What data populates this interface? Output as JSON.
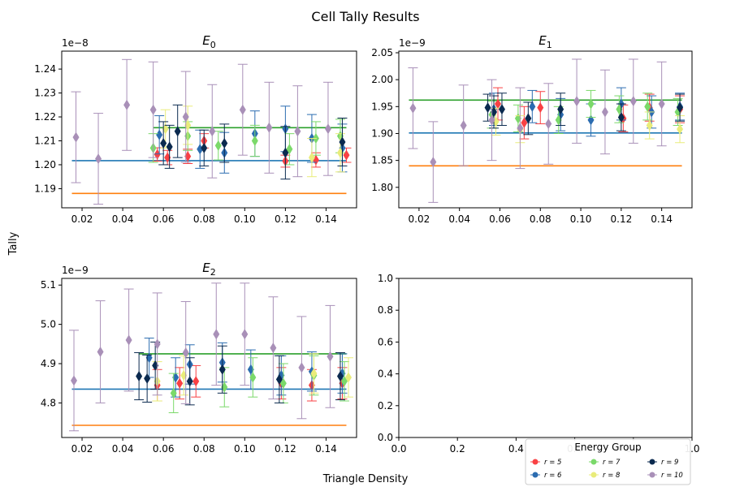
{
  "figure": {
    "title": "Cell Tally Results",
    "xlabel": "Triangle Density",
    "ylabel": "Tally"
  },
  "legend": {
    "title": "Energy Group",
    "placement": "lower-right",
    "entries": [
      {
        "label": "r = 5",
        "color": "#f94144",
        "marker": "circle"
      },
      {
        "label": "r = 6",
        "color": "#2b6cb0",
        "marker": "circle"
      },
      {
        "label": "r = 7",
        "color": "#7bd96a",
        "marker": "circle"
      },
      {
        "label": "r = 8",
        "color": "#e9ec7a",
        "marker": "circle"
      },
      {
        "label": "r = 9",
        "color": "#0b2a4f",
        "marker": "circle"
      },
      {
        "label": "r = 10",
        "color": "#a990b8",
        "marker": "circle"
      }
    ]
  },
  "reference_colors": {
    "blue": "#1f77b4",
    "orange": "#ff7f0e",
    "green": "#2ca02c"
  },
  "chart_data": [
    {
      "type": "scatter",
      "title": "E_0",
      "title_main": "E",
      "title_sub": "0",
      "exponent_label": "1e−8",
      "xlim": [
        0.01,
        0.155
      ],
      "ylim": [
        1.182,
        1.2475
      ],
      "xticks": [
        0.02,
        0.04,
        0.06,
        0.08,
        0.1,
        0.12,
        0.14
      ],
      "xtick_labels": [
        "0.02",
        "0.04",
        "0.06",
        "0.08",
        "0.10",
        "0.12",
        "0.14"
      ],
      "yticks": [
        1.19,
        1.2,
        1.21,
        1.22,
        1.23,
        1.24
      ],
      "ytick_labels": [
        "1.19",
        "1.20",
        "1.21",
        "1.22",
        "1.23",
        "1.24"
      ],
      "hlines": [
        {
          "color": "#ff7f0e",
          "y": 1.188,
          "x": [
            0.015,
            0.15
          ]
        },
        {
          "color": "#1f77b4",
          "y": 1.2017,
          "x": [
            0.015,
            0.15
          ]
        },
        {
          "color": "#2ca02c",
          "y": 1.2155,
          "x": [
            0.055,
            0.15
          ]
        }
      ],
      "series": [
        {
          "color": "#f94144",
          "points": [
            {
              "x": 0.057,
              "y": 1.2043,
              "err": 0.0028
            },
            {
              "x": 0.062,
              "y": 1.203,
              "err": 0.003
            },
            {
              "x": 0.072,
              "y": 1.2035,
              "err": 0.003
            },
            {
              "x": 0.08,
              "y": 1.21,
              "err": 0.003
            },
            {
              "x": 0.12,
              "y": 1.2015,
              "err": 0.0025
            },
            {
              "x": 0.135,
              "y": 1.202,
              "err": 0.003
            },
            {
              "x": 0.15,
              "y": 1.204,
              "err": 0.003
            }
          ]
        },
        {
          "color": "#2b6cb0",
          "points": [
            {
              "x": 0.058,
              "y": 1.2125,
              "err": 0.008
            },
            {
              "x": 0.078,
              "y": 1.2065,
              "err": 0.008
            },
            {
              "x": 0.09,
              "y": 1.205,
              "err": 0.0085
            },
            {
              "x": 0.105,
              "y": 1.213,
              "err": 0.0095
            },
            {
              "x": 0.12,
              "y": 1.215,
              "err": 0.0095
            },
            {
              "x": 0.133,
              "y": 1.211,
              "err": 0.01
            },
            {
              "x": 0.148,
              "y": 1.207,
              "err": 0.01
            }
          ]
        },
        {
          "color": "#7bd96a",
          "points": [
            {
              "x": 0.055,
              "y": 1.207,
              "err": 0.006
            },
            {
              "x": 0.072,
              "y": 1.212,
              "err": 0.006
            },
            {
              "x": 0.087,
              "y": 1.208,
              "err": 0.006
            },
            {
              "x": 0.105,
              "y": 1.21,
              "err": 0.0065
            },
            {
              "x": 0.122,
              "y": 1.2065,
              "err": 0.0065
            },
            {
              "x": 0.135,
              "y": 1.211,
              "err": 0.007
            },
            {
              "x": 0.147,
              "y": 1.212,
              "err": 0.007
            }
          ]
        },
        {
          "color": "#e9ec7a",
          "points": [
            {
              "x": 0.061,
              "y": 1.215,
              "err": 0.008
            },
            {
              "x": 0.072,
              "y": 1.2165,
              "err": 0.008
            },
            {
              "x": 0.133,
              "y": 1.203,
              "err": 0.008
            },
            {
              "x": 0.147,
              "y": 1.205,
              "err": 0.008
            }
          ]
        },
        {
          "color": "#0b2a4f",
          "points": [
            {
              "x": 0.06,
              "y": 1.209,
              "err": 0.009
            },
            {
              "x": 0.063,
              "y": 1.2075,
              "err": 0.009
            },
            {
              "x": 0.067,
              "y": 1.214,
              "err": 0.011
            },
            {
              "x": 0.08,
              "y": 1.207,
              "err": 0.0075
            },
            {
              "x": 0.09,
              "y": 1.209,
              "err": 0.008
            },
            {
              "x": 0.12,
              "y": 1.205,
              "err": 0.011
            },
            {
              "x": 0.148,
              "y": 1.2095,
              "err": 0.01
            }
          ]
        },
        {
          "color": "#a990b8",
          "points": [
            {
              "x": 0.017,
              "y": 1.2115,
              "err": 0.019
            },
            {
              "x": 0.028,
              "y": 1.2025,
              "err": 0.019
            },
            {
              "x": 0.042,
              "y": 1.225,
              "err": 0.019
            },
            {
              "x": 0.055,
              "y": 1.223,
              "err": 0.02
            },
            {
              "x": 0.071,
              "y": 1.22,
              "err": 0.019
            },
            {
              "x": 0.084,
              "y": 1.214,
              "err": 0.0195
            },
            {
              "x": 0.099,
              "y": 1.223,
              "err": 0.019
            },
            {
              "x": 0.112,
              "y": 1.2155,
              "err": 0.019
            },
            {
              "x": 0.126,
              "y": 1.214,
              "err": 0.019
            },
            {
              "x": 0.141,
              "y": 1.215,
              "err": 0.0195
            }
          ]
        }
      ]
    },
    {
      "type": "scatter",
      "title": "E_1",
      "title_main": "E",
      "title_sub": "1",
      "exponent_label": "1e−9",
      "xlim": [
        0.01,
        0.155
      ],
      "ylim": [
        1.762,
        2.053
      ],
      "xticks": [
        0.02,
        0.04,
        0.06,
        0.08,
        0.1,
        0.12,
        0.14
      ],
      "xtick_labels": [
        "0.02",
        "0.04",
        "0.06",
        "0.08",
        "0.10",
        "0.12",
        "0.14"
      ],
      "yticks": [
        1.8,
        1.85,
        1.9,
        1.95,
        2.0,
        2.05
      ],
      "ytick_labels": [
        "1.80",
        "1.85",
        "1.90",
        "1.95",
        "2.00",
        "2.05"
      ],
      "hlines": [
        {
          "color": "#ff7f0e",
          "y": 1.84,
          "x": [
            0.015,
            0.15
          ]
        },
        {
          "color": "#1f77b4",
          "y": 1.901,
          "x": [
            0.015,
            0.15
          ]
        },
        {
          "color": "#2ca02c",
          "y": 1.962,
          "x": [
            0.015,
            0.15
          ]
        }
      ],
      "series": [
        {
          "color": "#f94144",
          "points": [
            {
              "x": 0.059,
              "y": 1.955,
              "err": 0.03
            },
            {
              "x": 0.072,
              "y": 1.92,
              "err": 0.03
            },
            {
              "x": 0.08,
              "y": 1.948,
              "err": 0.03
            },
            {
              "x": 0.121,
              "y": 1.928,
              "err": 0.025
            },
            {
              "x": 0.134,
              "y": 1.948,
              "err": 0.025
            },
            {
              "x": 0.149,
              "y": 1.945,
              "err": 0.025
            }
          ]
        },
        {
          "color": "#2b6cb0",
          "points": [
            {
              "x": 0.057,
              "y": 1.945,
              "err": 0.03
            },
            {
              "x": 0.076,
              "y": 1.95,
              "err": 0.03
            },
            {
              "x": 0.09,
              "y": 1.935,
              "err": 0.03
            },
            {
              "x": 0.105,
              "y": 1.925,
              "err": 0.03
            },
            {
              "x": 0.12,
              "y": 1.955,
              "err": 0.03
            },
            {
              "x": 0.135,
              "y": 1.94,
              "err": 0.03
            },
            {
              "x": 0.149,
              "y": 1.95,
              "err": 0.025
            }
          ]
        },
        {
          "color": "#7bd96a",
          "points": [
            {
              "x": 0.056,
              "y": 1.935,
              "err": 0.025
            },
            {
              "x": 0.069,
              "y": 1.928,
              "err": 0.025
            },
            {
              "x": 0.089,
              "y": 1.925,
              "err": 0.025
            },
            {
              "x": 0.105,
              "y": 1.955,
              "err": 0.025
            },
            {
              "x": 0.119,
              "y": 1.945,
              "err": 0.025
            },
            {
              "x": 0.133,
              "y": 1.95,
              "err": 0.025
            },
            {
              "x": 0.148,
              "y": 1.94,
              "err": 0.025
            }
          ]
        },
        {
          "color": "#e9ec7a",
          "points": [
            {
              "x": 0.058,
              "y": 1.922,
              "err": 0.025
            },
            {
              "x": 0.07,
              "y": 1.908,
              "err": 0.025
            },
            {
              "x": 0.134,
              "y": 1.915,
              "err": 0.025
            },
            {
              "x": 0.149,
              "y": 1.908,
              "err": 0.025
            }
          ]
        },
        {
          "color": "#0b2a4f",
          "points": [
            {
              "x": 0.054,
              "y": 1.948,
              "err": 0.025
            },
            {
              "x": 0.057,
              "y": 1.94,
              "err": 0.03
            },
            {
              "x": 0.061,
              "y": 1.945,
              "err": 0.03
            },
            {
              "x": 0.074,
              "y": 1.928,
              "err": 0.03
            },
            {
              "x": 0.09,
              "y": 1.945,
              "err": 0.03
            },
            {
              "x": 0.12,
              "y": 1.93,
              "err": 0.025
            },
            {
              "x": 0.149,
              "y": 1.948,
              "err": 0.025
            }
          ]
        },
        {
          "color": "#a990b8",
          "points": [
            {
              "x": 0.017,
              "y": 1.947,
              "err": 0.075
            },
            {
              "x": 0.027,
              "y": 1.847,
              "err": 0.075
            },
            {
              "x": 0.042,
              "y": 1.915,
              "err": 0.075
            },
            {
              "x": 0.056,
              "y": 1.925,
              "err": 0.075
            },
            {
              "x": 0.07,
              "y": 1.91,
              "err": 0.075
            },
            {
              "x": 0.084,
              "y": 1.918,
              "err": 0.075
            },
            {
              "x": 0.098,
              "y": 1.96,
              "err": 0.078
            },
            {
              "x": 0.112,
              "y": 1.94,
              "err": 0.078
            },
            {
              "x": 0.126,
              "y": 1.96,
              "err": 0.078
            },
            {
              "x": 0.14,
              "y": 1.955,
              "err": 0.078
            }
          ]
        }
      ]
    },
    {
      "type": "scatter",
      "title": "E_2",
      "title_main": "E",
      "title_sub": "2",
      "exponent_label": "1e−9",
      "xlim": [
        0.01,
        0.155
      ],
      "ylim": [
        4.712,
        5.117
      ],
      "xticks": [
        0.02,
        0.04,
        0.06,
        0.08,
        0.1,
        0.12,
        0.14
      ],
      "xtick_labels": [
        "0.02",
        "0.04",
        "0.06",
        "0.08",
        "0.10",
        "0.12",
        "0.14"
      ],
      "yticks": [
        4.8,
        4.9,
        5.0,
        5.1
      ],
      "ytick_labels": [
        "4.8",
        "4.9",
        "5.0",
        "5.1"
      ],
      "hlines": [
        {
          "color": "#ff7f0e",
          "y": 4.743,
          "x": [
            0.015,
            0.15
          ]
        },
        {
          "color": "#1f77b4",
          "y": 4.835,
          "x": [
            0.015,
            0.15
          ]
        },
        {
          "color": "#2ca02c",
          "y": 4.925,
          "x": [
            0.048,
            0.15
          ]
        }
      ],
      "series": [
        {
          "color": "#f94144",
          "points": [
            {
              "x": 0.057,
              "y": 4.845,
              "err": 0.04
            },
            {
              "x": 0.068,
              "y": 4.85,
              "err": 0.04
            },
            {
              "x": 0.076,
              "y": 4.855,
              "err": 0.04
            },
            {
              "x": 0.118,
              "y": 4.85,
              "err": 0.04
            },
            {
              "x": 0.133,
              "y": 4.845,
              "err": 0.04
            },
            {
              "x": 0.148,
              "y": 4.85,
              "err": 0.04
            }
          ]
        },
        {
          "color": "#2b6cb0",
          "points": [
            {
              "x": 0.053,
              "y": 4.915,
              "err": 0.05
            },
            {
              "x": 0.066,
              "y": 4.865,
              "err": 0.05
            },
            {
              "x": 0.073,
              "y": 4.898,
              "err": 0.05
            },
            {
              "x": 0.089,
              "y": 4.903,
              "err": 0.05
            },
            {
              "x": 0.103,
              "y": 4.885,
              "err": 0.05
            },
            {
              "x": 0.118,
              "y": 4.87,
              "err": 0.05
            },
            {
              "x": 0.133,
              "y": 4.88,
              "err": 0.05
            },
            {
              "x": 0.148,
              "y": 4.875,
              "err": 0.05
            }
          ]
        },
        {
          "color": "#7bd96a",
          "points": [
            {
              "x": 0.065,
              "y": 4.825,
              "err": 0.05
            },
            {
              "x": 0.09,
              "y": 4.84,
              "err": 0.05
            },
            {
              "x": 0.104,
              "y": 4.865,
              "err": 0.05
            },
            {
              "x": 0.119,
              "y": 4.85,
              "err": 0.05
            },
            {
              "x": 0.134,
              "y": 4.87,
              "err": 0.05
            },
            {
              "x": 0.149,
              "y": 4.855,
              "err": 0.05
            }
          ]
        },
        {
          "color": "#e9ec7a",
          "points": [
            {
              "x": 0.057,
              "y": 4.855,
              "err": 0.05
            },
            {
              "x": 0.07,
              "y": 4.87,
              "err": 0.05
            },
            {
              "x": 0.134,
              "y": 4.875,
              "err": 0.05
            },
            {
              "x": 0.151,
              "y": 4.865,
              "err": 0.05
            }
          ]
        },
        {
          "color": "#0b2a4f",
          "points": [
            {
              "x": 0.048,
              "y": 4.868,
              "err": 0.06
            },
            {
              "x": 0.052,
              "y": 4.862,
              "err": 0.06
            },
            {
              "x": 0.056,
              "y": 4.895,
              "err": 0.06
            },
            {
              "x": 0.073,
              "y": 4.855,
              "err": 0.06
            },
            {
              "x": 0.089,
              "y": 4.885,
              "err": 0.06
            },
            {
              "x": 0.117,
              "y": 4.86,
              "err": 0.06
            },
            {
              "x": 0.147,
              "y": 4.868,
              "err": 0.06
            }
          ]
        },
        {
          "color": "#a990b8",
          "points": [
            {
              "x": 0.016,
              "y": 4.857,
              "err": 0.128
            },
            {
              "x": 0.029,
              "y": 4.93,
              "err": 0.13
            },
            {
              "x": 0.043,
              "y": 4.96,
              "err": 0.13
            },
            {
              "x": 0.057,
              "y": 4.95,
              "err": 0.13
            },
            {
              "x": 0.071,
              "y": 4.928,
              "err": 0.13
            },
            {
              "x": 0.086,
              "y": 4.975,
              "err": 0.13
            },
            {
              "x": 0.1,
              "y": 4.975,
              "err": 0.13
            },
            {
              "x": 0.114,
              "y": 4.94,
              "err": 0.13
            },
            {
              "x": 0.128,
              "y": 4.89,
              "err": 0.13
            },
            {
              "x": 0.142,
              "y": 4.918,
              "err": 0.13
            }
          ]
        }
      ]
    },
    {
      "type": "scatter",
      "title": "",
      "xlim": [
        0.0,
        1.0
      ],
      "ylim": [
        0.0,
        1.0
      ],
      "xticks": [
        0.0,
        0.2,
        0.4,
        0.6,
        0.8,
        1.0
      ],
      "xtick_labels": [
        "0.0",
        "0.2",
        "0.4",
        "0.6",
        "0.8",
        "1.0"
      ],
      "yticks": [
        0.0,
        0.2,
        0.4,
        0.6,
        0.8,
        1.0
      ],
      "ytick_labels": [
        "0.0",
        "0.2",
        "0.4",
        "0.6",
        "0.8",
        "1.0"
      ],
      "hlines": [],
      "series": []
    }
  ]
}
